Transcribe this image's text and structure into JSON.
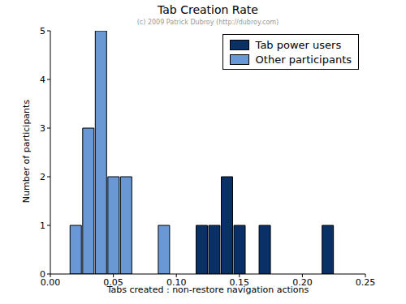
{
  "chart_data": {
    "type": "histogram",
    "title": "Tab Creation Rate",
    "subtitle": "(c) 2009 Patrick Dubroy (http://dubroy.com)",
    "x_label": "Tabs created : non-restore navigation actions",
    "y_label": "Number of participants",
    "bins": [
      0.015,
      0.025,
      0.035,
      0.045,
      0.055,
      0.065,
      0.075,
      0.085,
      0.095,
      0.105,
      0.115,
      0.125,
      0.135,
      0.145,
      0.155,
      0.165,
      0.175,
      0.185,
      0.195,
      0.205,
      0.215,
      0.225
    ],
    "series": [
      {
        "name": "Tab power users",
        "color": "#0a3068",
        "values": [
          0,
          0,
          0,
          0,
          0,
          0,
          0,
          0,
          0,
          0,
          1,
          1,
          2,
          1,
          0,
          1,
          0,
          0,
          0,
          0,
          1
        ]
      },
      {
        "name": "Other participants",
        "color": "#6a98d4",
        "values": [
          1,
          3,
          5,
          2,
          2,
          0,
          0,
          1,
          0,
          0,
          0,
          0,
          0,
          0,
          0,
          0,
          0,
          0,
          0,
          0,
          0
        ]
      }
    ],
    "xlim": [
      0,
      0.25
    ],
    "ylim": [
      0,
      5
    ],
    "xticks": [
      {
        "value": 0,
        "label": "0.00"
      },
      {
        "value": 0.05,
        "label": "0.05"
      },
      {
        "value": 0.1,
        "label": "0.10"
      },
      {
        "value": 0.15,
        "label": "0.15"
      },
      {
        "value": 0.2,
        "label": "0.20"
      },
      {
        "value": 0.25,
        "label": "0.25"
      }
    ],
    "yticks": [
      0,
      1,
      2,
      3,
      4,
      5
    ],
    "stacked": true,
    "legend": "upper right",
    "grid": false
  }
}
